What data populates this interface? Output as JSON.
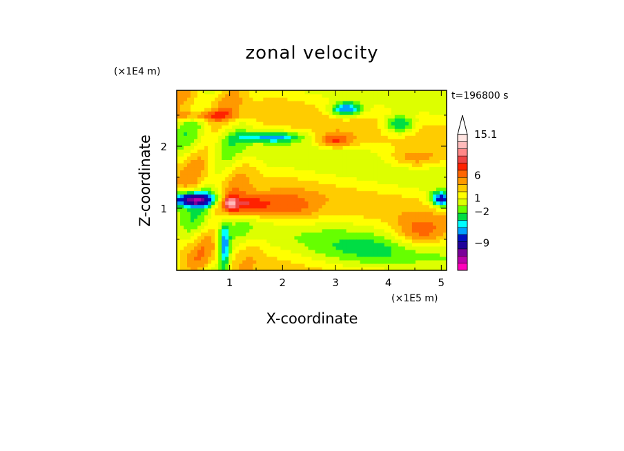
{
  "chart_data": {
    "type": "heatmap",
    "title": "zonal velocity",
    "xlabel": "X-coordinate",
    "ylabel": "Z-coordinate",
    "x_unit": "(×1E5 m)",
    "y_unit": "(×1E4 m)",
    "time_label": "t=196800 s",
    "x_ticks": [
      "1",
      "2",
      "3",
      "4",
      "5"
    ],
    "y_ticks": [
      "1",
      "2"
    ],
    "xlim": [
      0,
      5.1
    ],
    "ylim": [
      0,
      2.9
    ],
    "colorbar": {
      "labels": [
        "15.1",
        "6",
        "1",
        "−2",
        "−9"
      ],
      "label_values": [
        15.1,
        6,
        1,
        -2,
        -9
      ],
      "colors": [
        "#ff00bb",
        "#bb00aa",
        "#7a0099",
        "#20009a",
        "#0010c0",
        "#00a0ff",
        "#00ffff",
        "#00dd44",
        "#66ff00",
        "#ddff00",
        "#ffff00",
        "#ffcc00",
        "#ff9900",
        "#ff6600",
        "#ff2200",
        "#ee4444",
        "#ff8888",
        "#ffbbbb",
        "#ffe4e1"
      ]
    },
    "z_range": [
      -15,
      15.1
    ],
    "notes": "Filled contour field of zonal velocity; values approximated from colors"
  }
}
